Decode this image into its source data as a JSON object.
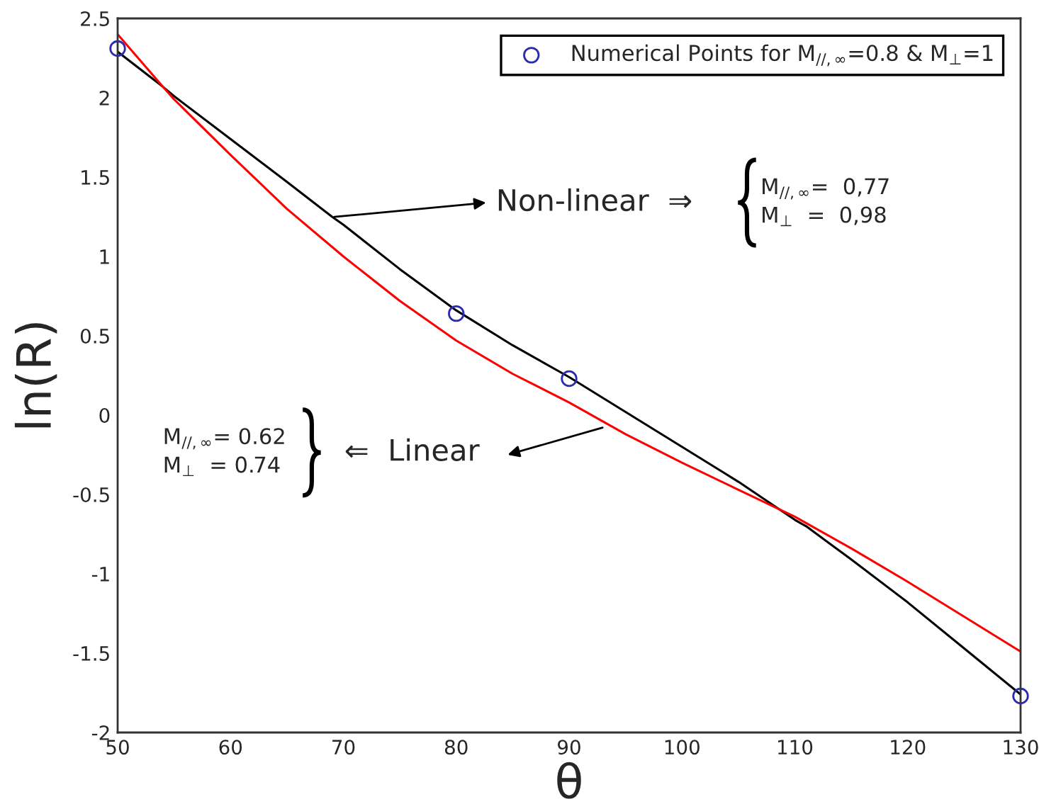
{
  "chart_data": {
    "type": "line",
    "xlabel": "θ",
    "ylabel": "ln(R)",
    "xlim": [
      50,
      130
    ],
    "xticks": [
      50,
      60,
      70,
      80,
      90,
      100,
      110,
      120,
      130
    ],
    "ylim": [
      -2,
      2.5
    ],
    "yticks": [
      -2,
      -1.5,
      -1,
      -0.5,
      0,
      0.5,
      1,
      1.5,
      2,
      2.5
    ],
    "grid": false,
    "legend": "top right",
    "series": [
      {
        "color": "#000000",
        "x": [
          50,
          54,
          55,
          60,
          65,
          69,
          70,
          75,
          80,
          85,
          90,
          95,
          100,
          105,
          110,
          111,
          115,
          120,
          125,
          130
        ],
        "values": [
          2.29,
          2.07,
          2.01,
          1.74,
          1.47,
          1.25,
          1.2,
          0.92,
          0.66,
          0.44,
          0.24,
          0.02,
          -0.2,
          -0.42,
          -0.66,
          -0.7,
          -0.91,
          -1.18,
          -1.47,
          -1.76
        ],
        "line_style": "solid",
        "marker": "none"
      },
      {
        "color": "#ff0000",
        "x": [
          50,
          54,
          55,
          60,
          65,
          70,
          75,
          80,
          85,
          90,
          95,
          100,
          105,
          110,
          111,
          115,
          120,
          125,
          130
        ],
        "values": [
          2.4,
          2.07,
          1.99,
          1.64,
          1.3,
          1.0,
          0.72,
          0.47,
          0.26,
          0.08,
          -0.12,
          -0.3,
          -0.47,
          -0.64,
          -0.68,
          -0.84,
          -1.05,
          -1.27,
          -1.49
        ],
        "line_style": "solid",
        "marker": "none"
      },
      {
        "type": "scatter",
        "name": "Numerical Points for M$_{//,∞}$=0.8 & M$_{⊥}$=1",
        "color": "#2b2bb0",
        "x": [
          50,
          80,
          90,
          130
        ],
        "values": [
          2.31,
          0.64,
          0.23,
          -1.77
        ],
        "marker": "circle"
      }
    ],
    "annotations": [
      "Non-linear  ⇒",
      "M$_{//,∞}$=  0,77\nM$_{⊥}$  =  0,98",
      "⇐  Linear",
      "M$_{//,∞}$= 0.62\nM$_{⊥}$  = 0.74"
    ]
  }
}
